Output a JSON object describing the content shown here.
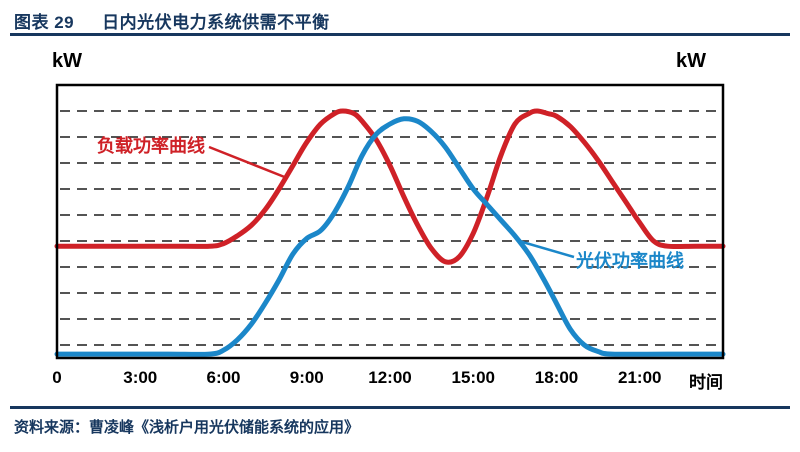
{
  "header": {
    "figure_label": "图表 29",
    "title": "日内光伏电力系统供需不平衡"
  },
  "footer": {
    "source": "资料来源：曹凌峰《浅析户用光伏储能系统的应用》"
  },
  "theme": {
    "accent_navy": "#17375e",
    "load_red": "#cf2127",
    "pv_blue": "#1b87c9",
    "grid_black": "#1c1c1c"
  },
  "chart_data": {
    "type": "line",
    "title": "日内光伏电力系统供需不平衡",
    "xlabel": "时间",
    "ylabel_left": "kW",
    "ylabel_right": "kW",
    "xlim": [
      0,
      24
    ],
    "ylim": [
      0,
      10.5
    ],
    "grid": "horizontal-dashed",
    "gridlines": [
      0.5,
      1.5,
      2.5,
      3.5,
      4.5,
      5.5,
      6.5,
      7.5,
      8.5,
      9.5
    ],
    "legend_position": "inline-annotations",
    "xticks": [
      {
        "label": "0",
        "hour": 0
      },
      {
        "label": "3:00",
        "hour": 3
      },
      {
        "label": "6:00",
        "hour": 6
      },
      {
        "label": "9:00",
        "hour": 9
      },
      {
        "label": "12:00",
        "hour": 12
      },
      {
        "label": "15:00",
        "hour": 15
      },
      {
        "label": "18:00",
        "hour": 18
      },
      {
        "label": "21:00",
        "hour": 21
      }
    ],
    "series": [
      {
        "id": "load-power-curve",
        "name": "负载功率曲线",
        "color": "#cf2127",
        "points": [
          [
            0,
            4.3
          ],
          [
            2,
            4.3
          ],
          [
            4,
            4.3
          ],
          [
            5.5,
            4.3
          ],
          [
            6,
            4.4
          ],
          [
            6.5,
            4.7
          ],
          [
            7,
            5.1
          ],
          [
            7.5,
            5.7
          ],
          [
            8,
            6.5
          ],
          [
            8.5,
            7.4
          ],
          [
            9,
            8.3
          ],
          [
            9.5,
            9.0
          ],
          [
            10,
            9.4
          ],
          [
            10.3,
            9.5
          ],
          [
            10.7,
            9.4
          ],
          [
            11,
            9.1
          ],
          [
            11.5,
            8.4
          ],
          [
            12,
            7.4
          ],
          [
            12.5,
            6.2
          ],
          [
            13,
            5.1
          ],
          [
            13.5,
            4.2
          ],
          [
            14,
            3.7
          ],
          [
            14.5,
            3.9
          ],
          [
            15,
            4.8
          ],
          [
            15.5,
            6.2
          ],
          [
            16,
            7.8
          ],
          [
            16.5,
            9.0
          ],
          [
            17,
            9.4
          ],
          [
            17.3,
            9.5
          ],
          [
            17.7,
            9.4
          ],
          [
            18,
            9.3
          ],
          [
            18.5,
            8.9
          ],
          [
            19,
            8.3
          ],
          [
            19.5,
            7.6
          ],
          [
            20,
            6.8
          ],
          [
            20.5,
            6.0
          ],
          [
            21,
            5.2
          ],
          [
            21.5,
            4.5
          ],
          [
            22,
            4.3
          ],
          [
            23,
            4.3
          ],
          [
            24,
            4.3
          ]
        ]
      },
      {
        "id": "pv-power-curve",
        "name": "光伏功率曲线",
        "color": "#1b87c9",
        "points": [
          [
            0,
            0.15
          ],
          [
            2,
            0.15
          ],
          [
            4,
            0.15
          ],
          [
            5.5,
            0.15
          ],
          [
            6,
            0.3
          ],
          [
            6.5,
            0.7
          ],
          [
            7,
            1.3
          ],
          [
            7.5,
            2.1
          ],
          [
            8,
            3.0
          ],
          [
            8.5,
            4.0
          ],
          [
            9,
            4.6
          ],
          [
            9.5,
            4.9
          ],
          [
            10,
            5.6
          ],
          [
            10.5,
            6.6
          ],
          [
            11,
            7.8
          ],
          [
            11.5,
            8.6
          ],
          [
            12,
            9.0
          ],
          [
            12.5,
            9.2
          ],
          [
            13,
            9.1
          ],
          [
            13.5,
            8.7
          ],
          [
            14,
            8.1
          ],
          [
            14.5,
            7.3
          ],
          [
            15,
            6.5
          ],
          [
            15.5,
            5.9
          ],
          [
            16,
            5.3
          ],
          [
            16.5,
            4.7
          ],
          [
            17,
            4.0
          ],
          [
            17.5,
            3.1
          ],
          [
            18,
            2.1
          ],
          [
            18.5,
            1.1
          ],
          [
            19,
            0.5
          ],
          [
            19.5,
            0.25
          ],
          [
            20,
            0.15
          ],
          [
            22,
            0.15
          ],
          [
            24,
            0.15
          ]
        ]
      }
    ]
  }
}
